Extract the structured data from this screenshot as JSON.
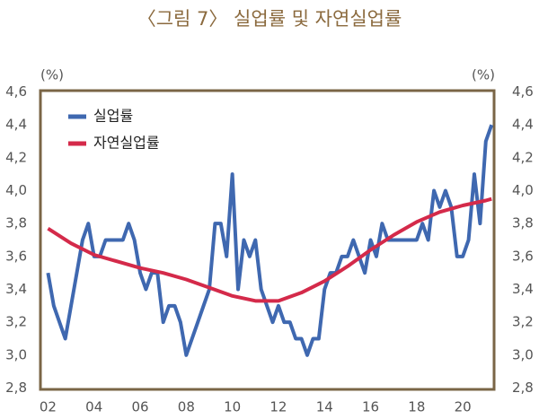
{
  "chart_data": {
    "type": "line",
    "title": "〈그림 7〉 실업률 및 자연실업률",
    "y_unit": "(%)",
    "y2_unit": "(%)",
    "xlim": [
      2001.73,
      2021.3
    ],
    "xticks": [
      {
        "value": 2002,
        "label": "02"
      },
      {
        "value": 2004,
        "label": "04"
      },
      {
        "value": 2006,
        "label": "06"
      },
      {
        "value": 2008,
        "label": "08"
      },
      {
        "value": 2010,
        "label": "10"
      },
      {
        "value": 2012,
        "label": "12"
      },
      {
        "value": 2014,
        "label": "14"
      },
      {
        "value": 2016,
        "label": "16"
      },
      {
        "value": 2018,
        "label": "18"
      },
      {
        "value": 2020,
        "label": "20"
      }
    ],
    "ylim": [
      2.8,
      4.6
    ],
    "yticks": [
      {
        "value": 2.8,
        "label": "2,8"
      },
      {
        "value": 3.0,
        "label": "3,0"
      },
      {
        "value": 3.2,
        "label": "3,2"
      },
      {
        "value": 3.4,
        "label": "3,4"
      },
      {
        "value": 3.6,
        "label": "3,6"
      },
      {
        "value": 3.8,
        "label": "3,8"
      },
      {
        "value": 4.0,
        "label": "4,0"
      },
      {
        "value": 4.2,
        "label": "4,2"
      },
      {
        "value": 4.4,
        "label": "4,4"
      },
      {
        "value": 4.6,
        "label": "4,6"
      }
    ],
    "y2lim": [
      2.8,
      4.6
    ],
    "y2ticks": [
      {
        "value": 2.8,
        "label": "2,8"
      },
      {
        "value": 3.0,
        "label": "3,0"
      },
      {
        "value": 3.2,
        "label": "3,2"
      },
      {
        "value": 3.4,
        "label": "3,4"
      },
      {
        "value": 3.6,
        "label": "3,6"
      },
      {
        "value": 3.8,
        "label": "3,8"
      },
      {
        "value": 4.0,
        "label": "4,0"
      },
      {
        "value": 4.2,
        "label": "4,2"
      },
      {
        "value": 4.4,
        "label": "4,4"
      },
      {
        "value": 4.6,
        "label": "4,6"
      }
    ],
    "legend": "upper left",
    "series": [
      {
        "name": "실업률",
        "color": "#3f68b0",
        "x": [
          2002,
          2002.25,
          2002.5,
          2002.75,
          2003,
          2003.25,
          2003.5,
          2003.75,
          2004,
          2004.25,
          2004.5,
          2004.75,
          2005,
          2005.25,
          2005.5,
          2005.75,
          2006,
          2006.25,
          2006.5,
          2006.75,
          2007,
          2007.25,
          2007.5,
          2007.75,
          2008,
          2008.25,
          2008.5,
          2008.75,
          2009,
          2009.25,
          2009.5,
          2009.75,
          2010,
          2010.25,
          2010.5,
          2010.75,
          2011,
          2011.25,
          2011.5,
          2011.75,
          2012,
          2012.25,
          2012.5,
          2012.75,
          2013,
          2013.25,
          2013.5,
          2013.75,
          2014,
          2014.25,
          2014.5,
          2014.75,
          2015,
          2015.25,
          2015.5,
          2015.75,
          2016,
          2016.25,
          2016.5,
          2016.75,
          2017,
          2017.25,
          2017.5,
          2017.75,
          2018,
          2018.25,
          2018.5,
          2018.75,
          2019,
          2019.25,
          2019.5,
          2019.75,
          2020,
          2020.25,
          2020.5,
          2020.75,
          2021,
          2021.25
        ],
        "values": [
          3.5,
          3.3,
          3.2,
          3.1,
          3.3,
          3.5,
          3.7,
          3.8,
          3.6,
          3.6,
          3.7,
          3.7,
          3.7,
          3.7,
          3.8,
          3.7,
          3.5,
          3.4,
          3.5,
          3.5,
          3.2,
          3.3,
          3.3,
          3.2,
          3.0,
          3.1,
          3.2,
          3.3,
          3.4,
          3.8,
          3.8,
          3.6,
          4.1,
          3.4,
          3.7,
          3.6,
          3.7,
          3.4,
          3.3,
          3.2,
          3.3,
          3.2,
          3.2,
          3.1,
          3.1,
          3.0,
          3.1,
          3.1,
          3.4,
          3.5,
          3.5,
          3.6,
          3.6,
          3.7,
          3.6,
          3.5,
          3.7,
          3.6,
          3.8,
          3.7,
          3.7,
          3.7,
          3.7,
          3.7,
          3.7,
          3.8,
          3.7,
          4.0,
          3.9,
          4.0,
          3.9,
          3.6,
          3.6,
          3.7,
          4.1,
          3.8,
          4.3,
          4.4
        ]
      },
      {
        "name": "자연실업률",
        "color": "#d42a4a",
        "x": [
          2002,
          2003,
          2004,
          2005,
          2006,
          2007,
          2008,
          2009,
          2010,
          2011,
          2012,
          2013,
          2014,
          2015,
          2016,
          2017,
          2018,
          2019,
          2020,
          2021,
          2021.25
        ],
        "values": [
          3.77,
          3.68,
          3.61,
          3.57,
          3.53,
          3.5,
          3.46,
          3.41,
          3.36,
          3.33,
          3.33,
          3.38,
          3.45,
          3.54,
          3.64,
          3.73,
          3.81,
          3.87,
          3.91,
          3.94,
          3.95
        ]
      }
    ]
  }
}
